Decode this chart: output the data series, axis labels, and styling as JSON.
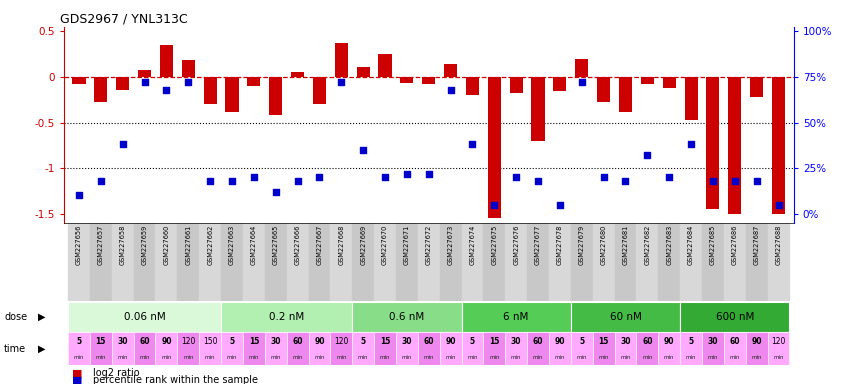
{
  "title": "GDS2967 / YNL313C",
  "samples": [
    "GSM227656",
    "GSM227657",
    "GSM227658",
    "GSM227659",
    "GSM227660",
    "GSM227661",
    "GSM227662",
    "GSM227663",
    "GSM227664",
    "GSM227665",
    "GSM227666",
    "GSM227667",
    "GSM227668",
    "GSM227669",
    "GSM227670",
    "GSM227671",
    "GSM227672",
    "GSM227673",
    "GSM227674",
    "GSM227675",
    "GSM227676",
    "GSM227677",
    "GSM227678",
    "GSM227679",
    "GSM227680",
    "GSM227681",
    "GSM227682",
    "GSM227683",
    "GSM227684",
    "GSM227685",
    "GSM227686",
    "GSM227687",
    "GSM227688"
  ],
  "log2ratio": [
    -0.08,
    -0.28,
    -0.14,
    0.08,
    0.35,
    0.19,
    -0.3,
    -0.38,
    -0.1,
    -0.42,
    0.05,
    -0.3,
    0.37,
    0.11,
    0.25,
    -0.07,
    -0.08,
    0.14,
    -0.2,
    -1.55,
    -0.18,
    -0.7,
    -0.15,
    0.2,
    -0.28,
    -0.38,
    -0.08,
    -0.12,
    -0.47,
    -1.45,
    -1.5,
    -0.22,
    -1.5
  ],
  "percentile": [
    10,
    18,
    38,
    72,
    68,
    72,
    18,
    18,
    20,
    12,
    18,
    20,
    72,
    35,
    20,
    22,
    22,
    68,
    38,
    5,
    20,
    18,
    5,
    72,
    20,
    18,
    32,
    20,
    38,
    18,
    18,
    18,
    5
  ],
  "doses": [
    {
      "label": "0.06 nM",
      "count": 7,
      "color": "#d9f9d9"
    },
    {
      "label": "0.2 nM",
      "count": 6,
      "color": "#b2f0b2"
    },
    {
      "label": "0.6 nM",
      "count": 5,
      "color": "#88dd88"
    },
    {
      "label": "6 nM",
      "count": 5,
      "color": "#55cc55"
    },
    {
      "label": "60 nM",
      "count": 5,
      "color": "#44bb44"
    },
    {
      "label": "600 nM",
      "count": 5,
      "color": "#33aa33"
    }
  ],
  "times": [
    [
      "5",
      "15",
      "30",
      "60",
      "90",
      "120",
      "150"
    ],
    [
      "5",
      "15",
      "30",
      "60",
      "90",
      "120"
    ],
    [
      "5",
      "15",
      "30",
      "60",
      "90"
    ],
    [
      "5",
      "15",
      "30",
      "60",
      "90"
    ],
    [
      "5",
      "15",
      "30",
      "60",
      "90"
    ],
    [
      "5",
      "30",
      "60",
      "90",
      "120"
    ]
  ],
  "time_colors_even": "#ffaaff",
  "time_colors_odd": "#ee88ee",
  "ylim": [
    -1.6,
    0.55
  ],
  "yticks": [
    0.5,
    0.0,
    -0.5,
    -1.0,
    -1.5
  ],
  "right_yticks": [
    100,
    75,
    50,
    25,
    0
  ],
  "bar_color": "#cc0000",
  "scatter_color": "#0000cc",
  "bg_color": "#ffffff",
  "legend_red": "log2 ratio",
  "legend_blue": "percentile rank within the sample",
  "label_bg_even": "#d8d8d8",
  "label_bg_odd": "#c8c8c8"
}
